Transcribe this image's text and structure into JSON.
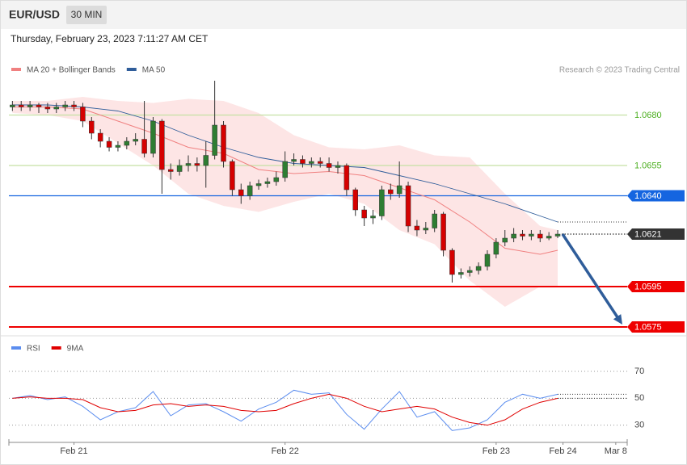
{
  "chart_data": {
    "type": "candlestick",
    "title": "EUR/USD",
    "timeframe": "30 MIN",
    "subtitle": "Thursday, February 23, 2023 7:11:27 AM CET",
    "credit": "Research © 2023 Trading Central",
    "xlim": [
      -0.4,
      69.9
    ],
    "xticks": [
      {
        "value": 7,
        "label": "Feb 21"
      },
      {
        "value": 31,
        "label": "Feb 22"
      },
      {
        "value": 55,
        "label": "Feb 23"
      },
      {
        "value": 62.6,
        "label": "Feb 24"
      },
      {
        "value": 68.6,
        "label": "Mar 8"
      }
    ],
    "ylim": [
      1.0571,
      1.0711
    ],
    "candles": {
      "up_color": "#2e7d32",
      "down_color": "#d50000",
      "x": [
        0,
        1,
        2,
        3,
        4,
        5,
        6,
        7,
        8,
        9,
        10,
        11,
        12,
        13,
        14,
        15,
        16,
        17,
        18,
        19,
        20,
        21,
        22,
        23,
        24,
        25,
        26,
        27,
        28,
        29,
        30,
        31,
        32,
        33,
        34,
        35,
        36,
        37,
        38,
        39,
        40,
        41,
        42,
        43,
        44,
        45,
        46,
        47,
        48,
        49,
        50,
        51,
        52,
        53,
        54,
        55,
        56,
        57,
        58,
        59,
        60,
        61,
        62
      ],
      "open": [
        1.0684,
        1.0685,
        1.0684,
        1.0685,
        1.0684,
        1.0683,
        1.0684,
        1.0685,
        1.0684,
        1.0677,
        1.0671,
        1.0667,
        1.0664,
        1.0665,
        1.0667,
        1.0668,
        1.0661,
        1.0677,
        1.0653,
        1.0652,
        1.0655,
        1.0656,
        1.0655,
        1.066,
        1.0675,
        1.0657,
        1.0643,
        1.064,
        1.0645,
        1.0646,
        1.0647,
        1.0649,
        1.0657,
        1.0658,
        1.0656,
        1.0657,
        1.0656,
        1.0654,
        1.0655,
        1.0643,
        1.0633,
        1.0629,
        1.063,
        1.0643,
        1.0641,
        1.0645,
        1.0625,
        1.0623,
        1.0624,
        1.0631,
        1.0613,
        1.0601,
        1.0602,
        1.0603,
        1.0605,
        1.0611,
        1.0617,
        1.0619,
        1.0621,
        1.062,
        1.0621,
        1.0619,
        1.062
      ],
      "high": [
        1.0687,
        1.0687,
        1.0687,
        1.0686,
        1.0686,
        1.0686,
        1.0687,
        1.0687,
        1.0686,
        1.0679,
        1.0673,
        1.0669,
        1.0667,
        1.0669,
        1.0671,
        1.0687,
        1.0679,
        1.0678,
        1.0656,
        1.0658,
        1.066,
        1.0659,
        1.0667,
        1.0697,
        1.0677,
        1.0658,
        1.0646,
        1.0647,
        1.0648,
        1.0649,
        1.0652,
        1.0662,
        1.0661,
        1.066,
        1.0659,
        1.0659,
        1.0659,
        1.0657,
        1.0656,
        1.0644,
        1.0635,
        1.0633,
        1.0645,
        1.0646,
        1.0657,
        1.0647,
        1.0628,
        1.0627,
        1.0633,
        1.0632,
        1.0614,
        1.0604,
        1.0605,
        1.0607,
        1.0613,
        1.0619,
        1.0623,
        1.0624,
        1.0623,
        1.0623,
        1.0623,
        1.0622,
        1.0623
      ],
      "low": [
        1.0682,
        1.0682,
        1.0682,
        1.0681,
        1.0681,
        1.0681,
        1.0682,
        1.0682,
        1.0674,
        1.0668,
        1.0664,
        1.0662,
        1.0662,
        1.0663,
        1.0665,
        1.0659,
        1.0659,
        1.0641,
        1.0648,
        1.065,
        1.0652,
        1.0652,
        1.0644,
        1.0658,
        1.0654,
        1.064,
        1.0636,
        1.0638,
        1.0643,
        1.0644,
        1.0645,
        1.0647,
        1.0655,
        1.0654,
        1.0654,
        1.0654,
        1.0652,
        1.0651,
        1.064,
        1.063,
        1.0625,
        1.0626,
        1.0628,
        1.0638,
        1.0639,
        1.0622,
        1.062,
        1.0621,
        1.0622,
        1.061,
        1.0597,
        1.0599,
        1.06,
        1.0601,
        1.0603,
        1.0609,
        1.0615,
        1.0617,
        1.0618,
        1.0618,
        1.0617,
        1.0618,
        1.0619
      ],
      "close": [
        1.0685,
        1.0684,
        1.0685,
        1.0684,
        1.0683,
        1.0684,
        1.0685,
        1.0684,
        1.0677,
        1.0671,
        1.0667,
        1.0664,
        1.0665,
        1.0667,
        1.0668,
        1.0661,
        1.0677,
        1.0653,
        1.0652,
        1.0655,
        1.0656,
        1.0655,
        1.066,
        1.0675,
        1.0657,
        1.0643,
        1.064,
        1.0645,
        1.0646,
        1.0647,
        1.0649,
        1.0657,
        1.0658,
        1.0656,
        1.0657,
        1.0656,
        1.0654,
        1.0655,
        1.0643,
        1.0633,
        1.0629,
        1.063,
        1.0643,
        1.0641,
        1.0645,
        1.0625,
        1.0623,
        1.0624,
        1.0631,
        1.0613,
        1.0601,
        1.0602,
        1.0603,
        1.0605,
        1.0611,
        1.0617,
        1.0619,
        1.0621,
        1.062,
        1.0621,
        1.0619,
        1.062,
        1.0621
      ]
    },
    "overlays": {
      "x": [
        0,
        4,
        8,
        12,
        16,
        20,
        24,
        28,
        32,
        36,
        40,
        44,
        48,
        52,
        56,
        60,
        62
      ],
      "series": [
        {
          "name": "MA 20 + Bollinger Bands",
          "color": "#f08080",
          "band_color": "#fde0e0",
          "values": [
            1.0684,
            1.0684,
            1.0683,
            1.0677,
            1.0671,
            1.0664,
            1.0661,
            1.0653,
            1.0651,
            1.0652,
            1.065,
            1.0644,
            1.0638,
            1.0627,
            1.0614,
            1.0611,
            1.0613
          ],
          "upper": [
            1.0687,
            1.0687,
            1.0689,
            1.0687,
            1.0686,
            1.0688,
            1.0687,
            1.0681,
            1.067,
            1.0664,
            1.0663,
            1.0665,
            1.066,
            1.0659,
            1.0641,
            1.0625,
            1.0623
          ],
          "lower": [
            1.0681,
            1.068,
            1.0677,
            1.0666,
            1.0655,
            1.0641,
            1.0635,
            1.0632,
            1.0637,
            1.0641,
            1.0636,
            1.0623,
            1.0616,
            1.0598,
            1.0585,
            1.0595,
            1.0595
          ]
        },
        {
          "name": "MA 50",
          "color": "#2f5d9a",
          "values": [
            1.0685,
            1.0685,
            1.0684,
            1.0682,
            1.0677,
            1.067,
            1.0664,
            1.0659,
            1.0656,
            1.0655,
            1.0654,
            1.065,
            1.0646,
            1.0641,
            1.0636,
            1.063,
            1.0627
          ]
        }
      ]
    },
    "levels": [
      {
        "value": 1.068,
        "label": "1.0680",
        "color": "#c5e1a5",
        "text_color": "#4caf20",
        "style": "plain"
      },
      {
        "value": 1.0655,
        "label": "1.0655",
        "color": "#c5e1a5",
        "text_color": "#4caf20",
        "style": "plain"
      },
      {
        "value": 1.064,
        "label": "1.0640",
        "color": "#1565e0",
        "text_color": "#ffffff",
        "style": "tag"
      },
      {
        "value": 1.0621,
        "label": "1.0621",
        "color": "#333333",
        "text_color": "#ffffff",
        "style": "dotted"
      },
      {
        "value": 1.0595,
        "label": "1.0595",
        "color": "#ee0000",
        "text_color": "#ffffff",
        "style": "tag"
      },
      {
        "value": 1.0575,
        "label": "1.0575",
        "color": "#ee0000",
        "text_color": "#ffffff",
        "style": "tag"
      }
    ],
    "rsi": {
      "type": "line",
      "ylim": [
        19,
        82
      ],
      "yticks": [
        70,
        50,
        30
      ],
      "x": [
        0,
        2,
        4,
        6,
        8,
        10,
        12,
        14,
        16,
        18,
        20,
        22,
        24,
        26,
        28,
        30,
        32,
        34,
        36,
        38,
        40,
        42,
        44,
        46,
        48,
        50,
        52,
        54,
        56,
        58,
        60,
        62
      ],
      "series": [
        {
          "name": "RSI",
          "color": "#5b8def",
          "values": [
            50,
            52,
            49,
            51,
            44,
            34,
            40,
            43,
            55,
            37,
            45,
            46,
            40,
            33,
            42,
            47,
            56,
            53,
            54,
            38,
            27,
            42,
            55,
            36,
            40,
            26,
            28,
            34,
            47,
            53,
            50,
            53
          ]
        },
        {
          "name": "9MA",
          "color": "#e00000",
          "values": [
            50,
            51,
            50,
            50,
            49,
            43,
            40,
            41,
            45,
            46,
            44,
            45,
            44,
            41,
            40,
            41,
            46,
            50,
            53,
            50,
            44,
            40,
            42,
            44,
            42,
            36,
            32,
            30,
            34,
            42,
            47,
            50
          ]
        }
      ]
    }
  }
}
